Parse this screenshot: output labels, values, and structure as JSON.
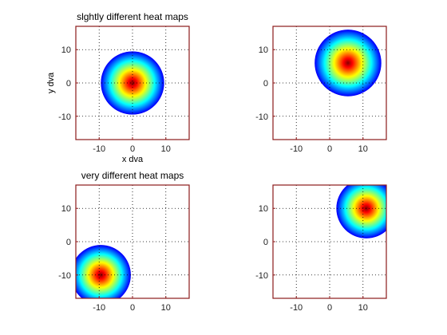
{
  "chart_data": [
    {
      "type": "heatmap",
      "title": "slghtly different heat maps",
      "xlabel": "x dva",
      "ylabel": "y dva",
      "xlim": [
        -17,
        17
      ],
      "ylim": [
        -17,
        17
      ],
      "xticks": [
        -10,
        0,
        10
      ],
      "yticks": [
        -10,
        0,
        10
      ],
      "grid": true,
      "colormap": "jet",
      "blob": {
        "center": [
          0,
          0
        ],
        "radius": 9.5
      }
    },
    {
      "type": "heatmap",
      "title": "",
      "xlabel": "",
      "ylabel": "",
      "xlim": [
        -17,
        17
      ],
      "ylim": [
        -17,
        17
      ],
      "xticks": [
        -10,
        0,
        10
      ],
      "yticks": [
        -10,
        0,
        10
      ],
      "grid": true,
      "colormap": "jet",
      "blob": {
        "center": [
          5.5,
          6
        ],
        "radius": 10
      }
    },
    {
      "type": "heatmap",
      "title": "very different heat maps",
      "xlabel": "",
      "ylabel": "",
      "xlim": [
        -17,
        17
      ],
      "ylim": [
        -17,
        17
      ],
      "xticks": [
        -10,
        0,
        10
      ],
      "yticks": [
        -10,
        0,
        10
      ],
      "grid": true,
      "colormap": "jet",
      "blob": {
        "center": [
          -9.5,
          -10
        ],
        "radius": 9
      }
    },
    {
      "type": "heatmap",
      "title": "",
      "xlabel": "",
      "ylabel": "",
      "xlim": [
        -17,
        17
      ],
      "ylim": [
        -17,
        17
      ],
      "xticks": [
        -10,
        0,
        10
      ],
      "yticks": [
        -10,
        0,
        10
      ],
      "grid": true,
      "colormap": "jet",
      "blob": {
        "center": [
          11,
          10
        ],
        "radius": 9
      }
    }
  ],
  "colors": {
    "frame": "#8b1a1a",
    "grid": "#000000",
    "background": "#ffffff"
  }
}
